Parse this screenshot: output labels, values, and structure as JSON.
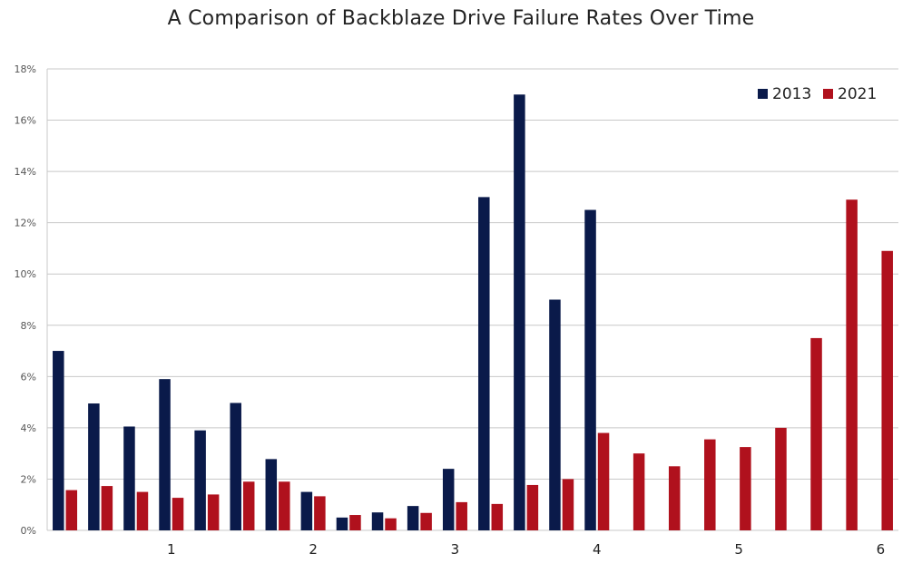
{
  "colors": {
    "series_2013": "#0a1a4a",
    "series_2021": "#b0111d",
    "grid": "#c8c8c8",
    "text": "#222222",
    "axis_text": "#555555"
  },
  "chart_data": {
    "type": "bar",
    "title": "A Comparison of Backblaze Drive Failure Rates Over Time",
    "xlabel": "",
    "ylabel": "",
    "ylim": [
      0,
      18
    ],
    "y_ticks": [
      0,
      2,
      4,
      6,
      8,
      10,
      12,
      14,
      16,
      18
    ],
    "y_tick_labels": [
      "0%",
      "2%",
      "4%",
      "6%",
      "8%",
      "10%",
      "12%",
      "14%",
      "16%",
      "18%"
    ],
    "x_tick_labels": [
      {
        "label": "1",
        "at_group": 3.5
      },
      {
        "label": "2",
        "at_group": 7.5
      },
      {
        "label": "3",
        "at_group": 11.5
      },
      {
        "label": "4",
        "at_group": 15.5
      },
      {
        "label": "5",
        "at_group": 19.5
      },
      {
        "label": "6",
        "at_group": 23.5
      }
    ],
    "grid": true,
    "legend_position": "top-right",
    "group_count": 24,
    "series": [
      {
        "name": "2013",
        "values": [
          7.0,
          4.95,
          4.05,
          5.9,
          3.9,
          4.97,
          2.78,
          1.5,
          0.5,
          0.7,
          0.95,
          2.4,
          13.0,
          17.0,
          9.0,
          12.5,
          null,
          null,
          null,
          null,
          null,
          null,
          null,
          null
        ]
      },
      {
        "name": "2021",
        "values": [
          1.57,
          1.73,
          1.5,
          1.27,
          1.4,
          1.9,
          1.9,
          1.33,
          0.6,
          0.47,
          0.68,
          1.1,
          1.03,
          1.77,
          2.0,
          3.8,
          3.0,
          2.5,
          3.55,
          3.25,
          4.0,
          7.5,
          12.9,
          10.9
        ]
      }
    ]
  }
}
